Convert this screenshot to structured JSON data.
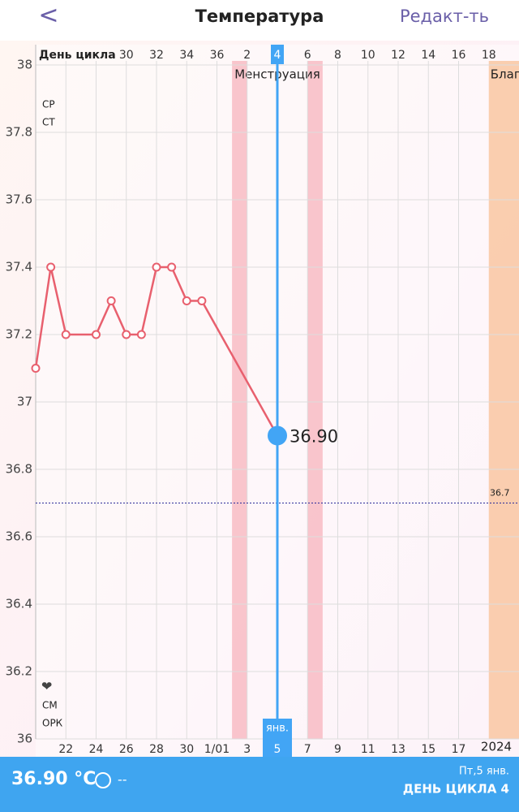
{
  "header": {
    "back": "<",
    "title": "Температура",
    "edit": "Редакт-ть"
  },
  "chart_data": {
    "type": "line",
    "top_axis_title": "День цикла",
    "x": [
      "12-20",
      "12-21",
      "12-22",
      "12-24",
      "12-25",
      "12-26",
      "12-27",
      "12-28",
      "12-29",
      "12-30",
      "12-31",
      "01-05"
    ],
    "series": [
      {
        "name": "Температура",
        "color": "#e8606e",
        "values": [
          37.1,
          37.4,
          37.2,
          37.2,
          37.3,
          37.2,
          37.2,
          37.4,
          37.4,
          37.3,
          37.3,
          36.9
        ],
        "value_labels": [
          null,
          null,
          null,
          null,
          null,
          null,
          null,
          null,
          null,
          null,
          null,
          "36.90"
        ]
      }
    ],
    "xlim": [
      "12-20",
      "01-21"
    ],
    "xticks": [
      {
        "value": "12-22",
        "label": "22"
      },
      {
        "value": "12-24",
        "label": "24"
      },
      {
        "value": "12-26",
        "label": "26"
      },
      {
        "value": "12-28",
        "label": "28"
      },
      {
        "value": "12-30",
        "label": "30"
      },
      {
        "value": "01-01",
        "label": "1/01"
      },
      {
        "value": "01-03",
        "label": "3"
      },
      {
        "value": "01-05",
        "label": "5"
      },
      {
        "value": "01-07",
        "label": "7"
      },
      {
        "value": "01-09",
        "label": "9"
      },
      {
        "value": "01-11",
        "label": "11"
      },
      {
        "value": "01-13",
        "label": "13"
      },
      {
        "value": "01-15",
        "label": "15"
      },
      {
        "value": "01-17",
        "label": "17"
      }
    ],
    "top_ticks": [
      {
        "value": "12-26",
        "label": "30"
      },
      {
        "value": "12-28",
        "label": "32"
      },
      {
        "value": "12-30",
        "label": "34"
      },
      {
        "value": "01-01",
        "label": "36"
      },
      {
        "value": "01-03",
        "label": "2"
      },
      {
        "value": "01-05",
        "label": "4"
      },
      {
        "value": "01-07",
        "label": "6"
      },
      {
        "value": "01-09",
        "label": "8"
      },
      {
        "value": "01-11",
        "label": "10"
      },
      {
        "value": "01-13",
        "label": "12"
      },
      {
        "value": "01-15",
        "label": "14"
      },
      {
        "value": "01-17",
        "label": "16"
      },
      {
        "value": "01-19",
        "label": "18"
      }
    ],
    "year_label": "2024",
    "ylim": [
      36,
      38
    ],
    "yticks": [
      36,
      36.2,
      36.4,
      36.6,
      36.8,
      37,
      37.2,
      37.4,
      37.6,
      37.8,
      38
    ],
    "grid": true,
    "cover_line": {
      "value": 36.7,
      "label": "36.7"
    },
    "bands": [
      {
        "label": "Менструация",
        "ranges": [
          [
            "01-02",
            "01-03"
          ],
          [
            "01-07",
            "01-08"
          ]
        ],
        "color": "#f7b8c0"
      },
      {
        "label": "Благ",
        "ranges": [
          [
            "01-19",
            "01-21"
          ]
        ],
        "color": "#f9c39c"
      }
    ],
    "cursor": {
      "x": "01-05",
      "month_label": "янв.",
      "color": "#42a5f5"
    },
    "side_labels_top": [
      "СР",
      "СТ"
    ],
    "side_labels_bottom": [
      "СМ",
      "ОРК"
    ]
  },
  "footer": {
    "temperature": "36.90 °C",
    "dash": "--",
    "date": "Пт,5 янв.",
    "cycle_day": "ДЕНЬ ЦИКЛА 4"
  }
}
